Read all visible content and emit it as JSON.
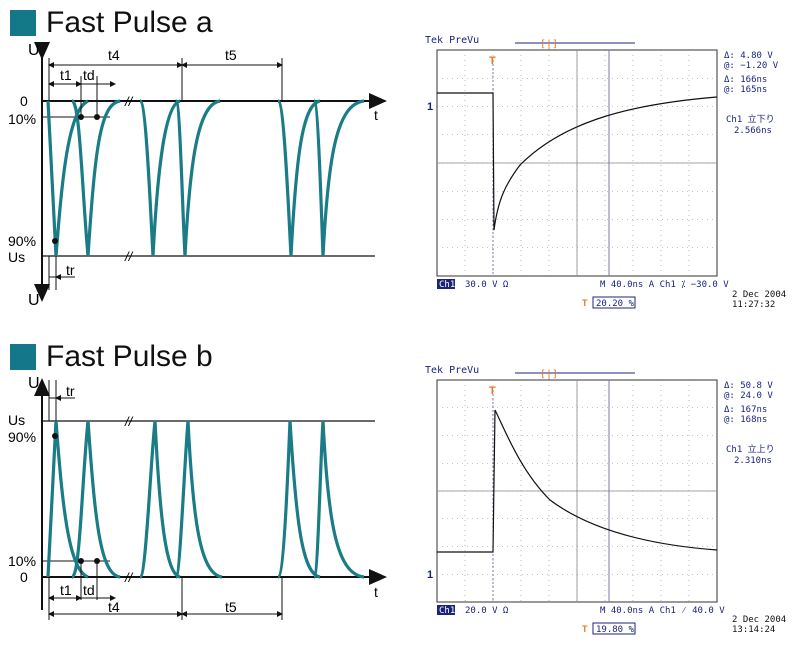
{
  "colors": {
    "accent": "#14788a",
    "pulse": "#1a7c86",
    "scope_text": "#1a237e",
    "scope_marker": "#e87722",
    "grid": "#888888",
    "trace": "#111111"
  },
  "panel_a": {
    "title": "Fast Pulse a",
    "labels": {
      "u_top": "U",
      "u_bottom": "U",
      "t1": "t1",
      "td": "td",
      "t4": "t4",
      "t5": "t5",
      "tr": "tr",
      "zero": "0",
      "ten_pct": "10%",
      "ninety_pct": "90%",
      "us": "Us",
      "t_axis": "t",
      "break_mark": "//"
    },
    "scope": {
      "header": "Tek PreVu",
      "trigger_bracket": "[|]",
      "readouts": [
        "Δ:   4.80 V",
        "@:  −1.20 V",
        "Δ:   166ns",
        "@:   165ns",
        "Ch1 立下り",
        "2.566ns"
      ],
      "bottom_ch": "Ch1",
      "bottom_volt": "30.0 V Ω",
      "bottom_time": "M 40.0ns  A  Ch1  ⁒  −30.0 V",
      "date": "2 Dec 2004",
      "time": "11:27:32",
      "pos_pct": "20.20 %",
      "ref_marker": "1",
      "trig_marker": "T"
    },
    "chart_data": {
      "type": "line",
      "xlabel": "t",
      "ylabel": "U",
      "series": [
        {
          "values": [
            0.0,
            1.0,
            0.98,
            0.85,
            0.62,
            0.42,
            0.28,
            0.18,
            0.12,
            0.08,
            0.05,
            0.03
          ]
        }
      ]
    }
  },
  "panel_b": {
    "title": "Fast Pulse b",
    "labels": {
      "u_top": "U",
      "t1": "t1",
      "td": "td",
      "t4": "t4",
      "t5": "t5",
      "tr": "tr",
      "zero": "0",
      "ten_pct": "10%",
      "ninety_pct": "90%",
      "us": "Us",
      "t_axis": "t",
      "break_mark": "//"
    },
    "scope": {
      "header": "Tek PreVu",
      "trigger_bracket": "[|]",
      "readouts": [
        "Δ:   50.8 V",
        "@:   24.0 V",
        "Δ:   167ns",
        "@:   168ns",
        "Ch1 立上り",
        "2.310ns"
      ],
      "bottom_ch": "Ch1",
      "bottom_volt": "20.0 V Ω",
      "bottom_time": "M 40.0ns  A  Ch1  ⁄  40.0 V",
      "date": "2 Dec 2004",
      "time": "13:14:24",
      "pos_pct": "19.80 %",
      "ref_marker": "1",
      "trig_marker": "T"
    },
    "chart_data": {
      "type": "line",
      "xlabel": "t",
      "ylabel": "U",
      "series": [
        {
          "values": [
            0.0,
            1.0,
            0.95,
            0.78,
            0.6,
            0.45,
            0.33,
            0.24,
            0.17,
            0.12,
            0.09,
            0.07
          ]
        }
      ]
    }
  }
}
